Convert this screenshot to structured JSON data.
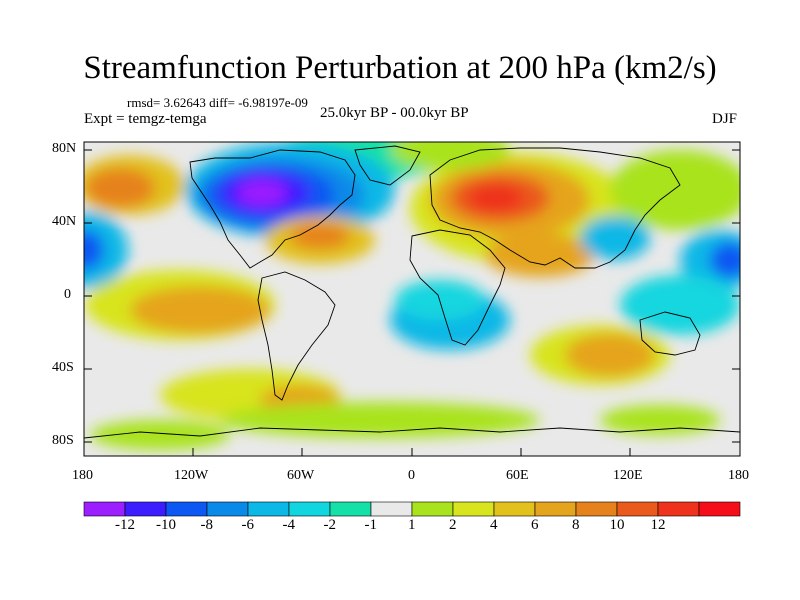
{
  "title": "Streamfunction Perturbation at 200 hPa (km2/s)",
  "stats": {
    "rmsd_text": "rmsd= 3.62643 diff= -6.98197e-09"
  },
  "experiment": "Expt = temgz-temga",
  "period": "25.0kyr BP - 00.0kyr BP",
  "season": "DJF",
  "lat_labels": [
    "80N",
    "40N",
    "0",
    "40S",
    "80S"
  ],
  "lon_labels": [
    "180",
    "120W",
    "60W",
    "0",
    "60E",
    "120E",
    "180"
  ],
  "colorbar": {
    "colors": [
      "#9b1fff",
      "#3c1dff",
      "#0d57f2",
      "#0a8ae8",
      "#0bb8e6",
      "#12d6df",
      "#14e0a7",
      "#e9e9e9",
      "#a9e31d",
      "#d8e41e",
      "#e2c11d",
      "#e5a41d",
      "#e6821c",
      "#ea5a1c",
      "#ee321b",
      "#f50d1a"
    ],
    "labels": [
      "-12",
      "-10",
      "-8",
      "-6",
      "-4",
      "-2",
      "-1",
      "1",
      "2",
      "4",
      "6",
      "8",
      "10",
      "12"
    ]
  }
}
